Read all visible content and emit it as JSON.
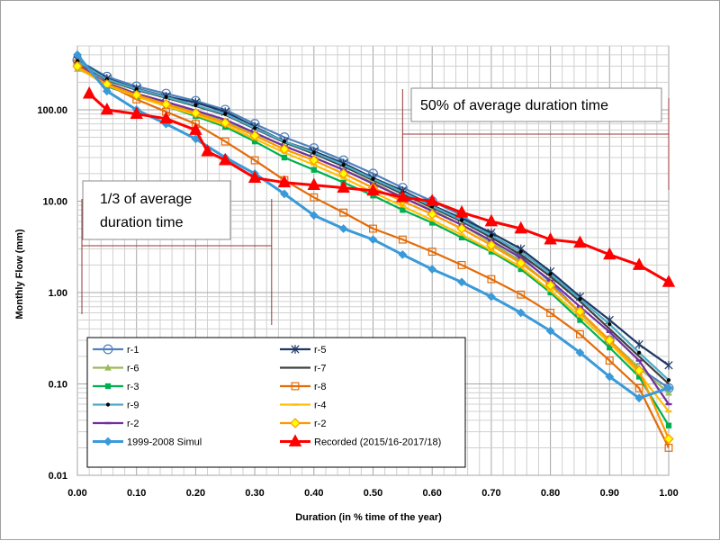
{
  "chart_data": {
    "type": "line",
    "title": "",
    "xlabel": "Duration (in % time of the year)",
    "ylabel": "Monthly Flow (mm)",
    "x_scale": "linear",
    "y_scale": "log",
    "xlim": [
      0,
      1
    ],
    "ylim": [
      0.01,
      500
    ],
    "grid": true,
    "legend_position": "bottom-left",
    "x_ticks": [
      "0.00",
      "0.10",
      "0.20",
      "0.30",
      "0.40",
      "0.50",
      "0.60",
      "0.70",
      "0.80",
      "0.90",
      "1.00"
    ],
    "y_ticks": [
      "100.00",
      "10.00",
      "1.00",
      "0.10",
      "0.01"
    ],
    "annotations": [
      {
        "text_lines": [
          "50% of average duration time"
        ],
        "x_start": 0.55,
        "x_end": 1.0
      },
      {
        "text_lines": [
          "1/3 of average",
          "duration time"
        ],
        "x_start": 0.0,
        "x_end": 0.33
      }
    ],
    "series": [
      {
        "name": "r-1",
        "color": "#4f81bd",
        "marker": "circle-open",
        "x": [
          0.0,
          0.05,
          0.1,
          0.15,
          0.2,
          0.25,
          0.3,
          0.35,
          0.4,
          0.45,
          0.5,
          0.55,
          0.6,
          0.65,
          0.7,
          0.75,
          0.8,
          0.85,
          0.9,
          0.95,
          1.0
        ],
        "y": [
          350,
          230,
          180,
          150,
          125,
          100,
          70,
          50,
          38,
          28,
          20,
          14,
          10,
          7,
          4.2,
          2.5,
          1.3,
          0.6,
          0.3,
          0.15,
          0.09
        ]
      },
      {
        "name": "r-5",
        "color": "#1f3864",
        "marker": "x",
        "x": [
          0.0,
          0.05,
          0.1,
          0.15,
          0.2,
          0.25,
          0.3,
          0.35,
          0.4,
          0.45,
          0.5,
          0.55,
          0.6,
          0.65,
          0.7,
          0.75,
          0.8,
          0.85,
          0.9,
          0.95,
          1.0
        ],
        "y": [
          350,
          220,
          170,
          140,
          120,
          95,
          65,
          45,
          35,
          26,
          18,
          13,
          9,
          6.5,
          4.5,
          3,
          1.7,
          0.9,
          0.5,
          0.27,
          0.16
        ]
      },
      {
        "name": "r-6",
        "color": "#9bbb59",
        "marker": "triangle",
        "x": [
          0.0,
          0.05,
          0.1,
          0.15,
          0.2,
          0.25,
          0.3,
          0.35,
          0.4,
          0.45,
          0.5,
          0.55,
          0.6,
          0.65,
          0.7,
          0.75,
          0.8,
          0.85,
          0.9,
          0.95,
          1.0
        ],
        "y": [
          280,
          200,
          150,
          120,
          95,
          75,
          55,
          40,
          30,
          22,
          16,
          11,
          8,
          5.5,
          3.5,
          2.2,
          1.2,
          0.6,
          0.3,
          0.15,
          0.08
        ]
      },
      {
        "name": "r-7",
        "color": "#404040",
        "marker": "none",
        "x": [
          0.0,
          0.05,
          0.1,
          0.15,
          0.2,
          0.25,
          0.3,
          0.35,
          0.4,
          0.45,
          0.5,
          0.55,
          0.6,
          0.65,
          0.7,
          0.75,
          0.8,
          0.85,
          0.9,
          0.95,
          1.0
        ],
        "y": [
          330,
          210,
          165,
          135,
          110,
          88,
          62,
          44,
          33,
          24,
          17,
          12,
          8.5,
          6,
          4,
          2.6,
          1.5,
          0.8,
          0.4,
          0.2,
          0.1
        ]
      },
      {
        "name": "r-3",
        "color": "#00b050",
        "marker": "square",
        "x": [
          0.0,
          0.05,
          0.1,
          0.15,
          0.2,
          0.25,
          0.3,
          0.35,
          0.4,
          0.45,
          0.5,
          0.55,
          0.6,
          0.65,
          0.7,
          0.75,
          0.8,
          0.85,
          0.9,
          0.95,
          1.0
        ],
        "y": [
          300,
          180,
          140,
          110,
          85,
          65,
          45,
          30,
          22,
          16,
          11.5,
          8,
          5.8,
          4,
          2.8,
          1.8,
          1.0,
          0.5,
          0.25,
          0.12,
          0.035
        ]
      },
      {
        "name": "r-8",
        "color": "#e36c09",
        "marker": "square-open",
        "x": [
          0.0,
          0.05,
          0.1,
          0.15,
          0.2,
          0.25,
          0.3,
          0.35,
          0.4,
          0.45,
          0.5,
          0.55,
          0.6,
          0.65,
          0.7,
          0.75,
          0.8,
          0.85,
          0.9,
          0.95,
          1.0
        ],
        "y": [
          320,
          190,
          130,
          95,
          70,
          45,
          28,
          17,
          11,
          7.5,
          5,
          3.8,
          2.8,
          2.0,
          1.4,
          0.95,
          0.6,
          0.35,
          0.18,
          0.09,
          0.02
        ]
      },
      {
        "name": "r-9",
        "color": "#4bacc6",
        "marker": "dot",
        "x": [
          0.0,
          0.05,
          0.1,
          0.15,
          0.2,
          0.25,
          0.3,
          0.35,
          0.4,
          0.45,
          0.5,
          0.55,
          0.6,
          0.65,
          0.7,
          0.75,
          0.8,
          0.85,
          0.9,
          0.95,
          1.0
        ],
        "y": [
          340,
          215,
          168,
          138,
          112,
          90,
          63,
          45,
          34,
          25,
          17.5,
          12.5,
          8.8,
          6.2,
          4.2,
          2.8,
          1.6,
          0.85,
          0.45,
          0.22,
          0.11
        ]
      },
      {
        "name": "r-4",
        "color": "#ffc000",
        "marker": "dash",
        "x": [
          0.0,
          0.05,
          0.1,
          0.15,
          0.2,
          0.25,
          0.3,
          0.35,
          0.4,
          0.45,
          0.5,
          0.55,
          0.6,
          0.65,
          0.7,
          0.75,
          0.8,
          0.85,
          0.9,
          0.95,
          1.0
        ],
        "y": [
          290,
          185,
          140,
          110,
          88,
          68,
          48,
          34,
          25,
          18,
          12.5,
          8.8,
          6.2,
          4.3,
          2.9,
          1.9,
          1.05,
          0.55,
          0.28,
          0.13,
          0.05
        ]
      },
      {
        "name": "r-2",
        "color": "#7030a0",
        "marker": "dash",
        "x": [
          0.0,
          0.05,
          0.1,
          0.15,
          0.2,
          0.25,
          0.3,
          0.35,
          0.4,
          0.45,
          0.5,
          0.55,
          0.6,
          0.65,
          0.7,
          0.75,
          0.8,
          0.85,
          0.9,
          0.95,
          1.0
        ],
        "y": [
          310,
          195,
          150,
          122,
          98,
          78,
          56,
          40,
          30,
          22,
          15.5,
          11,
          7.8,
          5.5,
          3.7,
          2.4,
          1.35,
          0.7,
          0.37,
          0.18,
          0.06
        ]
      },
      {
        "name": "r-2",
        "color": "#ff9900",
        "marker": "diamond",
        "x": [
          0.0,
          0.05,
          0.1,
          0.15,
          0.2,
          0.25,
          0.3,
          0.35,
          0.4,
          0.45,
          0.5,
          0.55,
          0.6,
          0.65,
          0.7,
          0.75,
          0.8,
          0.85,
          0.9,
          0.95,
          1.0
        ],
        "y": [
          300,
          190,
          145,
          115,
          92,
          72,
          52,
          37,
          28,
          20,
          14,
          10,
          7.2,
          5,
          3.3,
          2.1,
          1.2,
          0.62,
          0.3,
          0.14,
          0.025
        ]
      },
      {
        "name": "1999-2008 Simul",
        "color": "#3a9ad9",
        "marker": "diamond-filled",
        "x": [
          0.0,
          0.05,
          0.1,
          0.15,
          0.2,
          0.25,
          0.3,
          0.35,
          0.4,
          0.45,
          0.5,
          0.55,
          0.6,
          0.65,
          0.7,
          0.75,
          0.8,
          0.85,
          0.9,
          0.95,
          1.0
        ],
        "y": [
          400,
          160,
          100,
          70,
          48,
          30,
          20,
          12,
          7,
          5,
          3.8,
          2.6,
          1.8,
          1.3,
          0.9,
          0.6,
          0.38,
          0.22,
          0.12,
          0.07,
          0.09
        ]
      },
      {
        "name": "Recorded (2015/16-2017/18)",
        "color": "#ff0000",
        "marker": "triangle-filled",
        "x": [
          0.02,
          0.05,
          0.1,
          0.15,
          0.2,
          0.22,
          0.25,
          0.3,
          0.35,
          0.4,
          0.45,
          0.5,
          0.55,
          0.6,
          0.65,
          0.7,
          0.75,
          0.8,
          0.85,
          0.9,
          0.95,
          1.0
        ],
        "y": [
          150,
          100,
          90,
          80,
          60,
          35,
          28,
          18,
          16,
          15,
          14,
          13,
          11,
          10,
          7.5,
          6,
          5,
          3.8,
          3.5,
          2.6,
          2,
          1.3
        ]
      }
    ]
  }
}
